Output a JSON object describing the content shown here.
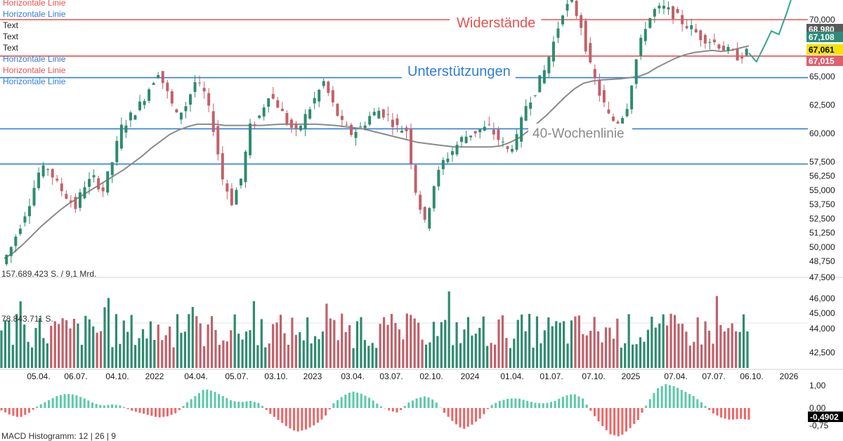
{
  "legend_items": [
    {
      "text": "Horizontale Linie",
      "color": "#e8524f"
    },
    {
      "text": "Horizontale Linie",
      "color": "#2f7ed8"
    },
    {
      "text": "Text",
      "color": "#222222"
    },
    {
      "text": "Text",
      "color": "#222222"
    },
    {
      "text": "Text",
      "color": "#222222"
    },
    {
      "text": "Horizontale Linie",
      "color": "#2f7ed8"
    },
    {
      "text": "Horizontale Linie",
      "color": "#e8524f"
    },
    {
      "text": "Horizontale Linie",
      "color": "#2f7ed8"
    }
  ],
  "annotations": {
    "resistance": "Widerstände",
    "support": "Unterstützungen",
    "ma_label": "40-Wochenlinie"
  },
  "volume_labels": {
    "total": "157.689.423 S. / 9,1 Mrd.",
    "average": "78.843.711 S."
  },
  "macd_label": "MACD Histogramm: 12 | 26 | 9",
  "price_pills": [
    {
      "text": "68,980",
      "bg": "#5a5a5a",
      "fg": "#ffffff"
    },
    {
      "text": "67,108",
      "bg": "#2e8b7a",
      "fg": "#ffffff"
    },
    {
      "text": "67,061",
      "bg": "#f5e400",
      "fg": "#000000"
    },
    {
      "text": "67,015",
      "bg": "#e06070",
      "fg": "#ffffff"
    }
  ],
  "macd_pills": [
    {
      "text": "-0,4902",
      "bg": "#000000",
      "fg": "#ffffff"
    }
  ],
  "colors": {
    "up": "#2e8b6e",
    "down": "#c0616a",
    "resistance": "#e8524f",
    "support": "#2f7ed8",
    "ma": "#8a8a8a",
    "forecast": "#2ea88f",
    "macd_pos": "#5ccaa8",
    "macd_neg": "#ee6565"
  },
  "chart_data": {
    "type": "candlestick",
    "title": "",
    "price_axis": {
      "ticks": [
        "70,000",
        "68,980",
        "67,108",
        "67,061",
        "67,015",
        "65,000",
        "62,500",
        "60,000",
        "57,500",
        "56,250",
        "55,000",
        "53,750",
        "52,500",
        "51,250",
        "50,000",
        "48,750",
        "47,500",
        "46,000",
        "45,000",
        "44,000",
        "42,500"
      ],
      "price_scale_ticks": [
        70000,
        65000,
        62500,
        60000,
        57500,
        56250,
        55000,
        53750,
        52500,
        51250,
        50000,
        48750,
        47500,
        46000,
        45000,
        44000,
        42500
      ]
    },
    "x_ticks": [
      "05.04.",
      "06.07.",
      "04.10.",
      "2022",
      "04.04.",
      "05.07.",
      "03.10.",
      "2023",
      "03.04.",
      "03.07.",
      "02.10.",
      "2024",
      "01.04.",
      "01.07.",
      "07.10.",
      "2025",
      "07.04.",
      "07.07.",
      "06.10.",
      "2026"
    ],
    "horizontal_lines": [
      {
        "name": "Horizontale Linie",
        "value": 70000,
        "color": "#e8524f"
      },
      {
        "name": "Horizontale Linie",
        "value": 66800,
        "color": "#e8524f"
      },
      {
        "name": "Horizontale Linie",
        "value": 64900,
        "color": "#2f7ed8"
      },
      {
        "name": "Horizontale Linie",
        "value": 60400,
        "color": "#2f7ed8"
      },
      {
        "name": "Horizontale Linie",
        "value": 57300,
        "color": "#2f7ed8"
      }
    ],
    "close_path": [
      48500,
      50000,
      52000,
      54000,
      56500,
      57000,
      55500,
      54500,
      53500,
      55500,
      56000,
      55000,
      57500,
      60500,
      61500,
      62500,
      64000,
      65500,
      63500,
      61500,
      62500,
      64500,
      63500,
      60500,
      56000,
      54000,
      56000,
      60500,
      61500,
      63500,
      62500,
      61000,
      60000,
      61500,
      63000,
      64500,
      62500,
      60800,
      60000,
      60500,
      61500,
      62000,
      61500,
      60500,
      60300,
      55000,
      52000,
      55500,
      57500,
      58500,
      59500,
      60000,
      60300,
      60500,
      59500,
      58500,
      59500,
      62500,
      63800,
      65500,
      68000,
      70800,
      71500,
      69500,
      65800,
      63500,
      61500,
      60800,
      62500,
      66500,
      69500,
      70800,
      71000,
      70500,
      69800,
      69200,
      68500,
      68200,
      67800,
      67200,
      66800,
      67061
    ],
    "forecast_path": [
      67061,
      66300,
      67600,
      69000,
      68700,
      70500,
      72500
    ],
    "ma40_path": [
      49000,
      49500,
      50200,
      51000,
      51800,
      52500,
      53200,
      53800,
      54300,
      54800,
      55300,
      55800,
      56300,
      56800,
      57400,
      58000,
      58700,
      59300,
      59900,
      60300,
      60600,
      60800,
      60800,
      60800,
      60700,
      60700,
      60700,
      60700,
      60700,
      60750,
      60800,
      60800,
      60800,
      60800,
      60800,
      60750,
      60700,
      60600,
      60500,
      60400,
      60200,
      60000,
      59800,
      59600,
      59400,
      59200,
      59100,
      59000,
      58900,
      58800,
      58800,
      58800,
      58800,
      58800,
      58900,
      59200,
      59600,
      60200,
      60900,
      61600,
      62400,
      63200,
      63900,
      64400,
      64600,
      64700,
      64750,
      64800,
      64900,
      65000,
      65300,
      65800,
      66200,
      66600,
      66900,
      67100,
      67200,
      67300,
      67200,
      67300,
      67500,
      67700
    ],
    "volume": {
      "bar_count": 196
    },
    "macd_histogram": {
      "axis_ticks": [
        "1,00",
        "0,00",
        "-0,75"
      ],
      "last_value": -0.4902,
      "values": [
        -0.1,
        -0.3,
        -0.4,
        -0.2,
        0.1,
        0.3,
        0.5,
        0.6,
        0.55,
        0.4,
        0.2,
        0.1,
        0.15,
        0.1,
        -0.1,
        -0.2,
        -0.3,
        -0.4,
        -0.35,
        -0.2,
        0.2,
        0.5,
        0.8,
        0.7,
        0.5,
        0.3,
        0.25,
        0.3,
        0.2,
        -0.2,
        -0.5,
        -0.8,
        -1.0,
        -0.9,
        -0.7,
        -0.4,
        0.2,
        0.5,
        0.7,
        0.6,
        0.4,
        0.1,
        -0.1,
        -0.2,
        0.2,
        0.4,
        0.5,
        0.3,
        -0.2,
        -0.6,
        -0.9,
        -0.7,
        -0.4,
        0.1,
        0.3,
        0.4,
        0.4,
        0.3,
        0.2,
        0.2,
        0.3,
        0.5,
        0.6,
        0.4,
        -0.2,
        -0.7,
        -1.1,
        -1.2,
        -0.9,
        -0.5,
        0.2,
        0.8,
        1.0,
        0.9,
        0.7,
        0.5,
        0.2,
        -0.2,
        -0.4,
        -0.5,
        -0.45,
        -0.49
      ]
    }
  }
}
